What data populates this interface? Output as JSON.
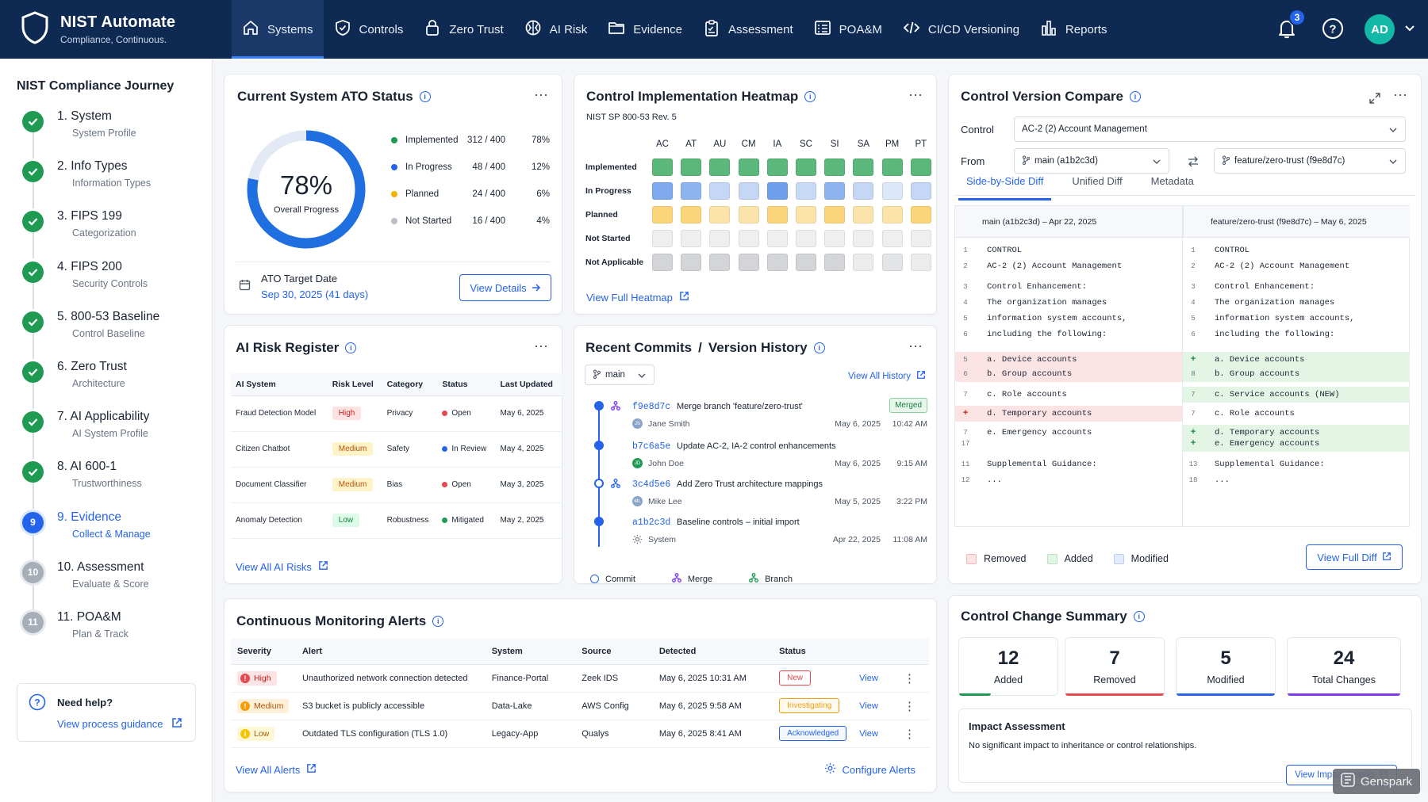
{
  "app": {
    "name": "NIST Automate",
    "tagline": "Compliance, Continuous."
  },
  "nav": {
    "items": [
      {
        "label": "Systems",
        "icon": "home-icon",
        "active": true
      },
      {
        "label": "Controls",
        "icon": "shield-check-icon"
      },
      {
        "label": "Zero Trust",
        "icon": "lock-icon"
      },
      {
        "label": "AI Risk",
        "icon": "brain-icon"
      },
      {
        "label": "Evidence",
        "icon": "folder-icon"
      },
      {
        "label": "Assessment",
        "icon": "clipboard-icon"
      },
      {
        "label": "POA&M",
        "icon": "list-checks-icon"
      },
      {
        "label": "CI/CD Versioning",
        "icon": "code-icon"
      },
      {
        "label": "Reports",
        "icon": "bar-chart-icon"
      }
    ],
    "notifications": "3",
    "avatar": "AD"
  },
  "sidebar": {
    "title": "NIST Compliance Journey",
    "steps": [
      {
        "n": "1",
        "title": "1. System",
        "sub": "System Profile",
        "state": "done"
      },
      {
        "n": "2",
        "title": "2. Info Types",
        "sub": "Information Types",
        "state": "done"
      },
      {
        "n": "3",
        "title": "3. FIPS 199",
        "sub": "Categorization",
        "state": "done"
      },
      {
        "n": "4",
        "title": "4. FIPS 200",
        "sub": "Security Controls",
        "state": "done"
      },
      {
        "n": "5",
        "title": "5. 800-53 Baseline",
        "sub": "Control Baseline",
        "state": "done"
      },
      {
        "n": "6",
        "title": "6. Zero Trust",
        "sub": "Architecture",
        "state": "done"
      },
      {
        "n": "7",
        "title": "7. AI Applicability",
        "sub": "AI System Profile",
        "state": "done"
      },
      {
        "n": "8",
        "title": "8. AI 600-1",
        "sub": "Trustworthiness",
        "state": "done"
      },
      {
        "n": "9",
        "title": "9. Evidence",
        "sub": "Collect & Manage",
        "state": "current"
      },
      {
        "n": "10",
        "title": "10. Assessment",
        "sub": "Evaluate & Score",
        "state": "pending"
      },
      {
        "n": "11",
        "title": "11. POA&M",
        "sub": "Plan & Track",
        "state": "pending"
      }
    ],
    "help_title": "Need help?",
    "help_link": "View process guidance"
  },
  "ato": {
    "title": "Current System ATO Status",
    "percent": "78%",
    "percent_value": 78,
    "overall_label": "Overall Progress",
    "legend": [
      {
        "label": "Implemented",
        "count": "312 / 400",
        "pct": "78%",
        "color": "#1e9a52"
      },
      {
        "label": "In Progress",
        "count": "48 / 400",
        "pct": "12%",
        "color": "#2563eb"
      },
      {
        "label": "Planned",
        "count": "24 / 400",
        "pct": "6%",
        "color": "#f5b301"
      },
      {
        "label": "Not Started",
        "count": "16 / 400",
        "pct": "4%",
        "color": "#b8bec7"
      }
    ],
    "target_label": "ATO Target Date",
    "target_date": "Sep 30, 2025  (41 days)",
    "button": "View Details"
  },
  "heatmap": {
    "title": "Control Implementation Heatmap",
    "subtitle": "NIST SP 800-53 Rev. 5",
    "columns": [
      "AC",
      "AT",
      "AU",
      "CM",
      "IA",
      "SC",
      "SI",
      "SA",
      "PM",
      "PT"
    ],
    "rows": [
      "Implemented",
      "In Progress",
      "Planned",
      "Not Started",
      "Not Applicable"
    ],
    "link": "View Full Heatmap"
  },
  "compare": {
    "title": "Control Version Compare",
    "control_label": "Control",
    "control_value": "AC-2 (2) Account Management",
    "from_label": "From",
    "from_branch": "main (a1b2c3d)",
    "to_branch": "feature/zero-trust (f9e8d7c)",
    "tabs": [
      "Side-by-Side Diff",
      "Unified Diff",
      "Metadata"
    ],
    "left_header": "main (a1b2c3d) – Apr 22, 2025",
    "right_header": "feature/zero-trust (f9e8d7c) – May 6, 2025",
    "left_lines": [
      {
        "ln": "1",
        "text": "CONTROL",
        "type": ""
      },
      {
        "ln": "2",
        "text": "AC-2 (2) Account Management",
        "type": ""
      },
      {
        "ln": "3",
        "text": "Control Enhancement:",
        "type": ""
      },
      {
        "ln": "4",
        "text": "The organization manages",
        "type": ""
      },
      {
        "ln": "5",
        "text": "information system accounts,",
        "type": ""
      },
      {
        "ln": "6",
        "text": "including the following:",
        "type": ""
      },
      {
        "ln": "5",
        "text": "a.  Device accounts",
        "type": "rem"
      },
      {
        "ln": "6",
        "text": "b.  Group accounts",
        "type": "rem"
      },
      {
        "ln": "7",
        "text": "c.  Role accounts",
        "type": ""
      },
      {
        "ln": "+",
        "text": "d.  Temporary accounts",
        "type": "rem"
      },
      {
        "ln": "7",
        "text": "e.  Emergency accounts",
        "type": ""
      },
      {
        "ln": "17",
        "text": "",
        "type": ""
      },
      {
        "ln": "11",
        "text": "Supplemental Guidance:",
        "type": ""
      },
      {
        "ln": "12",
        "text": "...",
        "type": ""
      }
    ],
    "right_lines": [
      {
        "ln": "1",
        "text": "CONTROL",
        "type": ""
      },
      {
        "ln": "2",
        "text": "AC-2 (2) Account Management",
        "type": ""
      },
      {
        "ln": "3",
        "text": "Control Enhancement:",
        "type": ""
      },
      {
        "ln": "4",
        "text": "The organization manages",
        "type": ""
      },
      {
        "ln": "5",
        "text": "information system accounts,",
        "type": ""
      },
      {
        "ln": "6",
        "text": "including the following:",
        "type": ""
      },
      {
        "ln": "+",
        "text": "a.  Device accounts",
        "type": "add"
      },
      {
        "ln": "8",
        "text": "b.  Group accounts",
        "type": "add"
      },
      {
        "ln": "7",
        "text": "c.  Service accounts (NEW)",
        "type": "add"
      },
      {
        "ln": "7",
        "text": "c.  Role accounts",
        "type": ""
      },
      {
        "ln": "+",
        "text": "d.  Temporary accounts",
        "type": "add"
      },
      {
        "ln": "+",
        "text": "e.  Emergency accounts",
        "type": "add"
      },
      {
        "ln": "13",
        "text": "Supplemental Guidance:",
        "type": ""
      },
      {
        "ln": "18",
        "text": "...",
        "type": ""
      }
    ],
    "legend": [
      "Removed",
      "Added",
      "Modified"
    ],
    "button": "View Full Diff"
  },
  "risk": {
    "title": "AI Risk Register",
    "headers": [
      "AI System",
      "Risk Level",
      "Category",
      "Status",
      "Last Updated"
    ],
    "rows": [
      {
        "system": "Fraud Detection Model",
        "level": "High",
        "cat": "Privacy",
        "status": "Open",
        "updated": "May 6, 2025"
      },
      {
        "system": "Citizen Chatbot",
        "level": "Medium",
        "cat": "Safety",
        "status": "In Review",
        "updated": "May 4, 2025"
      },
      {
        "system": "Document Classifier",
        "level": "Medium",
        "cat": "Bias",
        "status": "Open",
        "updated": "May 3, 2025"
      },
      {
        "system": "Anomaly Detection",
        "level": "Low",
        "cat": "Robustness",
        "status": "Mitigated",
        "updated": "May 2, 2025"
      }
    ],
    "link": "View All AI Risks"
  },
  "commits": {
    "title": "Recent Commits",
    "title2": "Version History",
    "branch": "main",
    "link": "View All History",
    "items": [
      {
        "hash": "f9e8d7c",
        "msg": "Merge branch 'feature/zero-trust'",
        "who": "Jane Smith",
        "initials": "JS",
        "date": "May 6, 2025",
        "time": "10:42 AM",
        "badge": "Merged"
      },
      {
        "hash": "b7c6a5e",
        "msg": "Update AC-2, IA-2 control enhancements",
        "who": "John Doe",
        "initials": "JD",
        "date": "May 6, 2025",
        "time": "9:15 AM",
        "badge": ""
      },
      {
        "hash": "3c4d5e6",
        "msg": "Add Zero Trust architecture mappings",
        "who": "Mike Lee",
        "initials": "ML",
        "date": "May 5, 2025",
        "time": "3:22 PM",
        "badge": ""
      },
      {
        "hash": "a1b2c3d",
        "msg": "Baseline controls – initial import",
        "who": "System",
        "initials": "",
        "date": "Apr 22, 2025",
        "time": "11:08 AM",
        "badge": ""
      }
    ],
    "legend": [
      "Commit",
      "Merge",
      "Branch"
    ]
  },
  "alerts": {
    "title": "Continuous Monitoring Alerts",
    "headers": [
      "Severity",
      "Alert",
      "System",
      "Source",
      "Detected",
      "Status"
    ],
    "rows": [
      {
        "sev": "High",
        "alert": "Unauthorized network connection detected",
        "system": "Finance-Portal",
        "source": "Zeek IDS",
        "detected": "May 6, 2025 10:31 AM",
        "status": "New",
        "action": "View"
      },
      {
        "sev": "Medium",
        "alert": "S3 bucket is publicly accessible",
        "system": "Data-Lake",
        "source": "AWS Config",
        "detected": "May 6, 2025 9:58 AM",
        "status": "Investigating",
        "action": "View"
      },
      {
        "sev": "Low",
        "alert": "Outdated TLS configuration (TLS 1.0)",
        "system": "Legacy-App",
        "source": "Qualys",
        "detected": "May 6, 2025 8:41 AM",
        "status": "Acknowledged",
        "action": "View"
      }
    ],
    "link": "View All Alerts",
    "configure": "Configure Alerts"
  },
  "summary": {
    "title": "Control Change Summary",
    "boxes": [
      {
        "n": "12",
        "label": "Added",
        "color": "#1e9a52"
      },
      {
        "n": "7",
        "label": "Removed",
        "color": "#e5484d"
      },
      {
        "n": "5",
        "label": "Modified",
        "color": "#2563eb"
      },
      {
        "n": "24",
        "label": "Total Changes",
        "color": "#7c3aed"
      }
    ],
    "impact_title": "Impact Assessment",
    "impact_text": "No significant impact to inheritance or control relationships.",
    "button": "View Impact Details"
  },
  "watermark": "Genspark"
}
